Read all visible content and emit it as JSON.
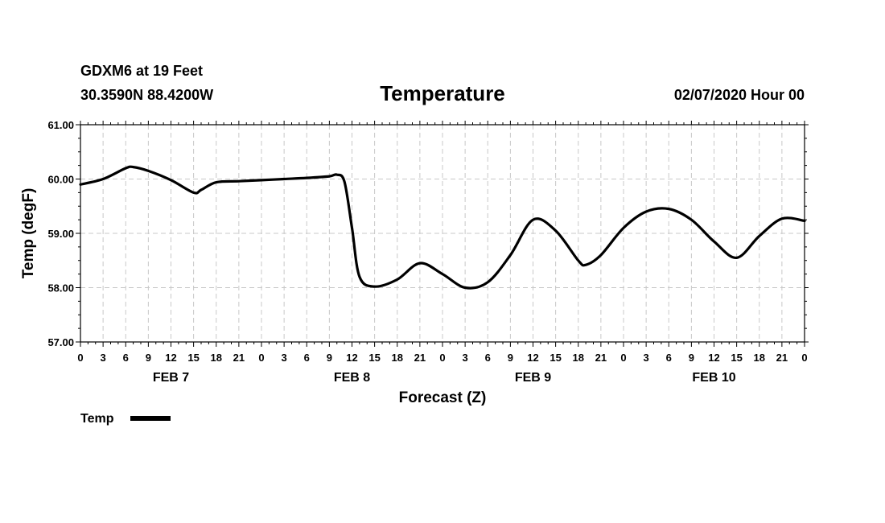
{
  "header": {
    "station": "GDXM6 at 19 Feet",
    "location": "30.3590N 88.4200W",
    "title": "Temperature",
    "run": "02/07/2020 Hour 00"
  },
  "chart_data": {
    "type": "line",
    "title": "Temperature",
    "xlabel": "Forecast (Z)",
    "ylabel": "Temp (degF)",
    "ylim": [
      57.0,
      61.0
    ],
    "yticks": [
      "61.00",
      "60.00",
      "59.00",
      "58.00",
      "57.00"
    ],
    "xlim_hours": [
      0,
      96
    ],
    "x_tick_labels": [
      "0",
      "3",
      "6",
      "9",
      "12",
      "15",
      "18",
      "21",
      "0",
      "3",
      "6",
      "9",
      "12",
      "15",
      "18",
      "21",
      "0",
      "3",
      "6",
      "9",
      "12",
      "15",
      "18",
      "21",
      "0",
      "3",
      "6",
      "9",
      "12",
      "15",
      "18",
      "21",
      "0"
    ],
    "day_labels": [
      {
        "label": "FEB 7",
        "center_hour": 12
      },
      {
        "label": "FEB 8",
        "center_hour": 36
      },
      {
        "label": "FEB 9",
        "center_hour": 60
      },
      {
        "label": "FEB 10",
        "center_hour": 84
      }
    ],
    "grid": true,
    "legend": {
      "position": "bottom-left",
      "label": "Temp"
    },
    "series": [
      {
        "name": "Temp",
        "x": [
          0,
          3,
          6,
          7,
          9,
          12,
          15,
          16,
          18,
          21,
          24,
          27,
          30,
          33,
          34,
          35,
          36,
          37,
          39,
          42,
          45,
          48,
          51,
          54,
          57,
          60,
          63,
          66,
          67,
          69,
          72,
          75,
          78,
          81,
          84,
          87,
          90,
          93,
          96
        ],
        "y": [
          59.9,
          60.0,
          60.2,
          60.22,
          60.15,
          59.98,
          59.75,
          59.8,
          59.94,
          59.96,
          59.98,
          60.0,
          60.02,
          60.05,
          60.08,
          59.95,
          59.1,
          58.2,
          58.02,
          58.15,
          58.45,
          58.25,
          58.0,
          58.1,
          58.6,
          59.25,
          59.05,
          58.5,
          58.42,
          58.6,
          59.1,
          59.4,
          59.45,
          59.25,
          58.85,
          58.55,
          58.95,
          59.27,
          59.23
        ]
      }
    ]
  }
}
